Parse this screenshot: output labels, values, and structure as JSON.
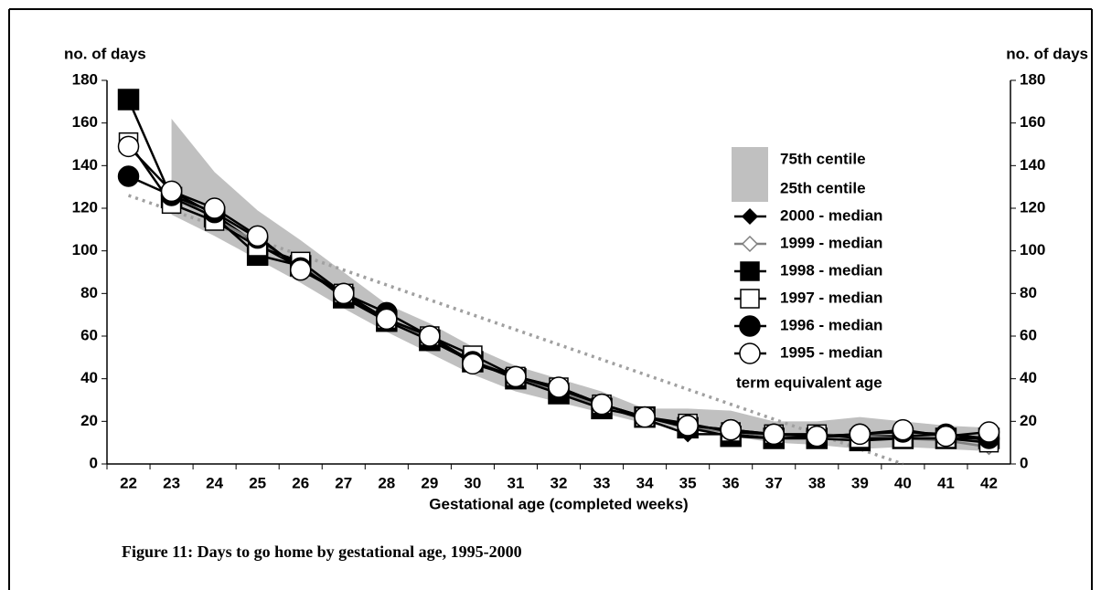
{
  "chart_data": {
    "type": "line",
    "caption": "Figure 11: Days to go home by gestational age, 1995-2000",
    "xlabel": "Gestational age (completed weeks)",
    "ylabel": "no. of days",
    "y2label": "no. of days",
    "categories": [
      "22",
      "23",
      "24",
      "25",
      "26",
      "27",
      "28",
      "29",
      "30",
      "31",
      "32",
      "33",
      "34",
      "35",
      "36",
      "37",
      "38",
      "39",
      "40",
      "41",
      "42"
    ],
    "ylim": [
      0,
      180
    ],
    "yticks": [
      0,
      20,
      40,
      60,
      80,
      100,
      120,
      140,
      160,
      180
    ],
    "y2lim": [
      0,
      180
    ],
    "y2ticks": [
      0,
      20,
      40,
      60,
      80,
      100,
      120,
      140,
      160,
      180
    ],
    "band": {
      "color": "#c0c0c0",
      "upper": {
        "name": "75th centile",
        "values": [
          null,
          162,
          137,
          119,
          105,
          90,
          75,
          66,
          55,
          46,
          40,
          34,
          26,
          26,
          25,
          20,
          20,
          22,
          20,
          18,
          17
        ]
      },
      "lower": {
        "name": "25th centile",
        "values": [
          null,
          117,
          107,
          96,
          85,
          73,
          62,
          52,
          42,
          34,
          29,
          24,
          19,
          16,
          13,
          10,
          9,
          7,
          8,
          7,
          6
        ]
      }
    },
    "reference": {
      "name": "term equivalent age",
      "color": "#a0a0a0",
      "values": [
        126,
        119,
        112,
        105,
        98,
        91,
        84,
        77,
        70,
        63,
        56,
        49,
        42,
        35,
        28,
        21,
        14,
        7,
        0,
        null,
        null
      ]
    },
    "series": [
      {
        "name": "2000 - median",
        "color": "#000000",
        "marker": "diamond",
        "fill": "#000000",
        "values": [
          null,
          128,
          117,
          103,
          92,
          79,
          68,
          58,
          48,
          40,
          34,
          27,
          21,
          14,
          14,
          12,
          13,
          13,
          13,
          14,
          11
        ]
      },
      {
        "name": "1999 - median",
        "color": "#808080",
        "marker": "diamond",
        "fill": "#ffffff",
        "values": [
          null,
          127,
          115,
          104,
          93,
          80,
          68,
          58,
          49,
          40,
          34,
          27,
          22,
          17,
          15,
          13,
          14,
          13,
          12,
          11,
          8
        ]
      },
      {
        "name": "1998 - median",
        "color": "#000000",
        "marker": "square",
        "fill": "#000000",
        "values": [
          171,
          125,
          116,
          98,
          93,
          78,
          67,
          58,
          48,
          40,
          33,
          26,
          22,
          17,
          13,
          12,
          12,
          11,
          12,
          12,
          12
        ]
      },
      {
        "name": "1997 - median",
        "color": "#000000",
        "marker": "square",
        "fill": "#ffffff",
        "values": [
          151,
          122,
          114,
          102,
          95,
          80,
          68,
          60,
          51,
          41,
          36,
          28,
          22,
          19,
          15,
          14,
          14,
          12,
          12,
          12,
          10
        ]
      },
      {
        "name": "1996 - median",
        "color": "#000000",
        "marker": "circle",
        "fill": "#000000",
        "values": [
          135,
          126,
          118,
          106,
          92,
          80,
          71,
          60,
          48,
          41,
          35,
          28,
          22,
          18,
          16,
          14,
          13,
          14,
          15,
          14,
          12
        ]
      },
      {
        "name": "1995 - median",
        "color": "#000000",
        "marker": "circle",
        "fill": "#ffffff",
        "values": [
          149,
          128,
          120,
          107,
          91,
          80,
          68,
          60,
          47,
          41,
          36,
          28,
          22,
          18,
          16,
          14,
          13,
          14,
          16,
          13,
          15
        ]
      }
    ]
  }
}
